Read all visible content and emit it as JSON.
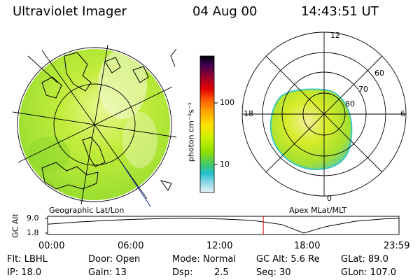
{
  "header": {
    "instrument": "Ultraviolet Imager",
    "date": "04 Aug 00",
    "time": "14:43:51 UT"
  },
  "colorbar": {
    "unit_label": "photon cm⁻²s⁻¹",
    "ticks": [
      "100",
      "10"
    ],
    "colors": [
      "#000000",
      "#3a0050",
      "#a0002a",
      "#e00000",
      "#ff5a00",
      "#ffa000",
      "#ffe000",
      "#ccf000",
      "#90e000",
      "#40c870",
      "#20c0d0",
      "#90d8e8",
      "#e8f4f8"
    ]
  },
  "geo_map": {
    "caption": "Geographic Lat/Lon",
    "fill_color": "#b8e830"
  },
  "polar_plot": {
    "caption": "Apex MLat/MLT",
    "hour_labels": {
      "top": "12",
      "left": "18",
      "right": "6",
      "bottom": "0"
    },
    "lat_labels": [
      "60",
      "70",
      "80"
    ],
    "fill_color": "#c8ea20"
  },
  "altitude_plot": {
    "ylabel": "GC Alt",
    "y_ticks": [
      "9.0",
      "1.8"
    ],
    "x_ticks": [
      "00:00",
      "06:00",
      "12:00",
      "18:00",
      "23:59"
    ],
    "current_time_hour": 14.73,
    "marker_color": "#e00000",
    "curve_hours": [
      0,
      2,
      4,
      6,
      8,
      10,
      12,
      14,
      16,
      17.5,
      19,
      21,
      23,
      23.98
    ],
    "curve_values": [
      6.2,
      7.2,
      8.0,
      8.6,
      8.95,
      9.0,
      8.7,
      8.0,
      6.0,
      1.8,
      5.0,
      7.6,
      8.8,
      9.0
    ]
  },
  "info": {
    "filter": "Flt: LBHL",
    "door": "Door: Open",
    "mode": "Mode: Normal",
    "gc_alt": "GC Alt: 5.6 Re",
    "glat": "GLat:  89.0",
    "ip": "IP: 18.0",
    "gain": "Gain: 13",
    "dsp_label": "Dsp:",
    "dsp_value": "2.5",
    "seq": "Seq: 30",
    "glon": "GLon: 107.0"
  }
}
